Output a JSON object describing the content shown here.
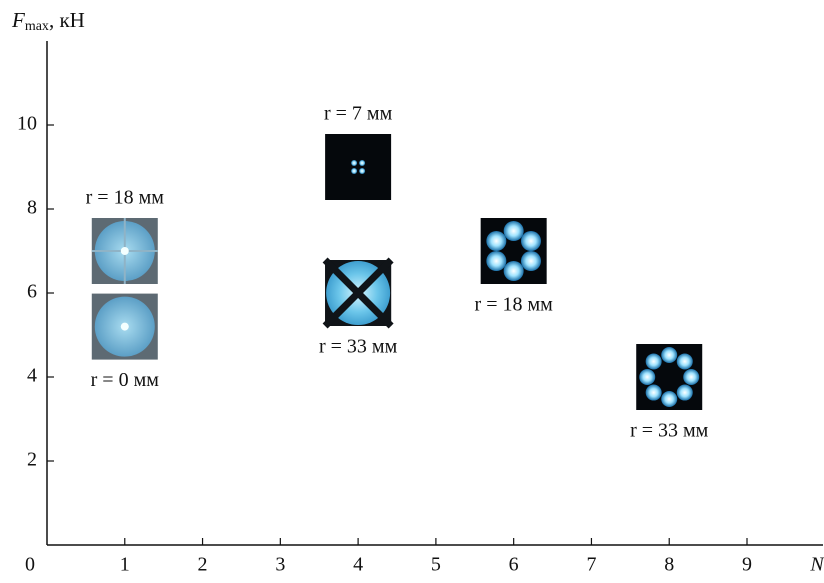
{
  "chart_data": {
    "type": "scatter",
    "y_label": {
      "symbol": "F",
      "subscript": "max",
      "unit": ", кН"
    },
    "x_label": "N",
    "origin_label": "0",
    "x": [
      1,
      1,
      4,
      4,
      6,
      8
    ],
    "values": [
      7.0,
      5.2,
      9.0,
      6.0,
      7.0,
      4.0
    ],
    "point_labels": [
      "r = 18 мм",
      "r = 0 мм",
      "r = 7 мм",
      "r = 33 мм",
      "r = 18 мм",
      "r = 33 мм"
    ],
    "xlim": [
      0,
      9.9
    ],
    "xticks": [
      1,
      2,
      3,
      4,
      5,
      6,
      7,
      8,
      9
    ],
    "ylim": [
      0,
      12
    ],
    "yticks": [
      2,
      4,
      6,
      8,
      10
    ]
  }
}
